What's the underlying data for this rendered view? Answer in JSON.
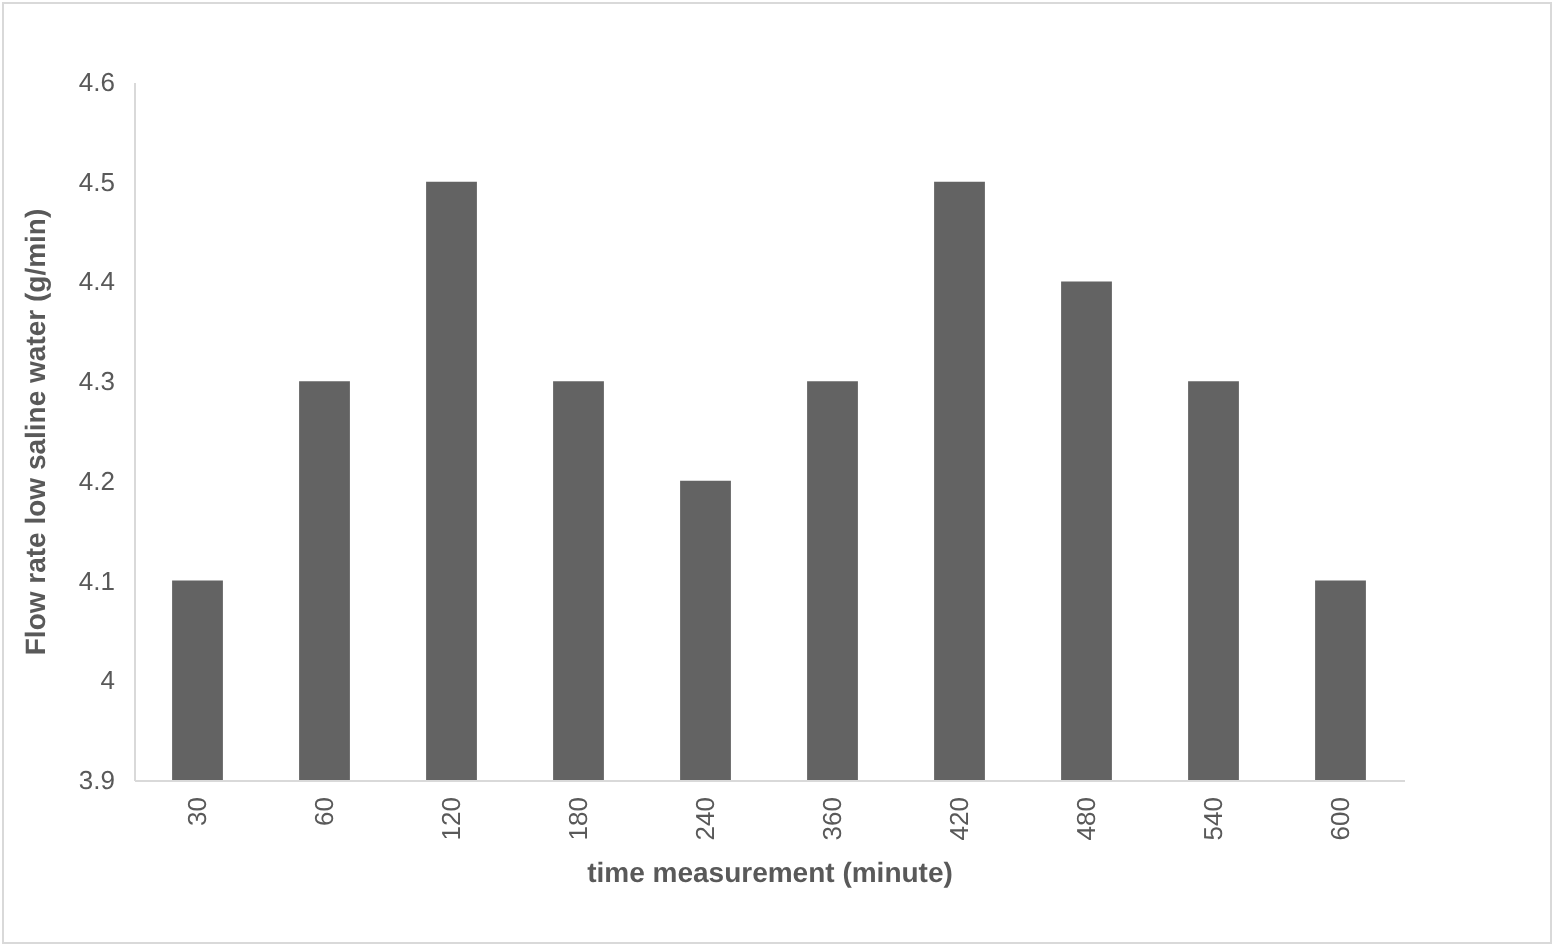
{
  "chart_data": {
    "type": "bar",
    "xlabel": "time measurement (minute)",
    "ylabel": "Flow rate low saline water (g/min)",
    "categories": [
      "30",
      "60",
      "120",
      "180",
      "240",
      "360",
      "420",
      "480",
      "540",
      "600"
    ],
    "values": [
      4.1,
      4.3,
      4.5,
      4.3,
      4.2,
      4.3,
      4.5,
      4.4,
      4.3,
      4.1
    ],
    "color": "#636363",
    "ylim": [
      3.9,
      4.6
    ],
    "yticks": [
      3.9,
      4,
      4.1,
      4.2,
      4.3,
      4.4,
      4.5,
      4.6
    ]
  }
}
